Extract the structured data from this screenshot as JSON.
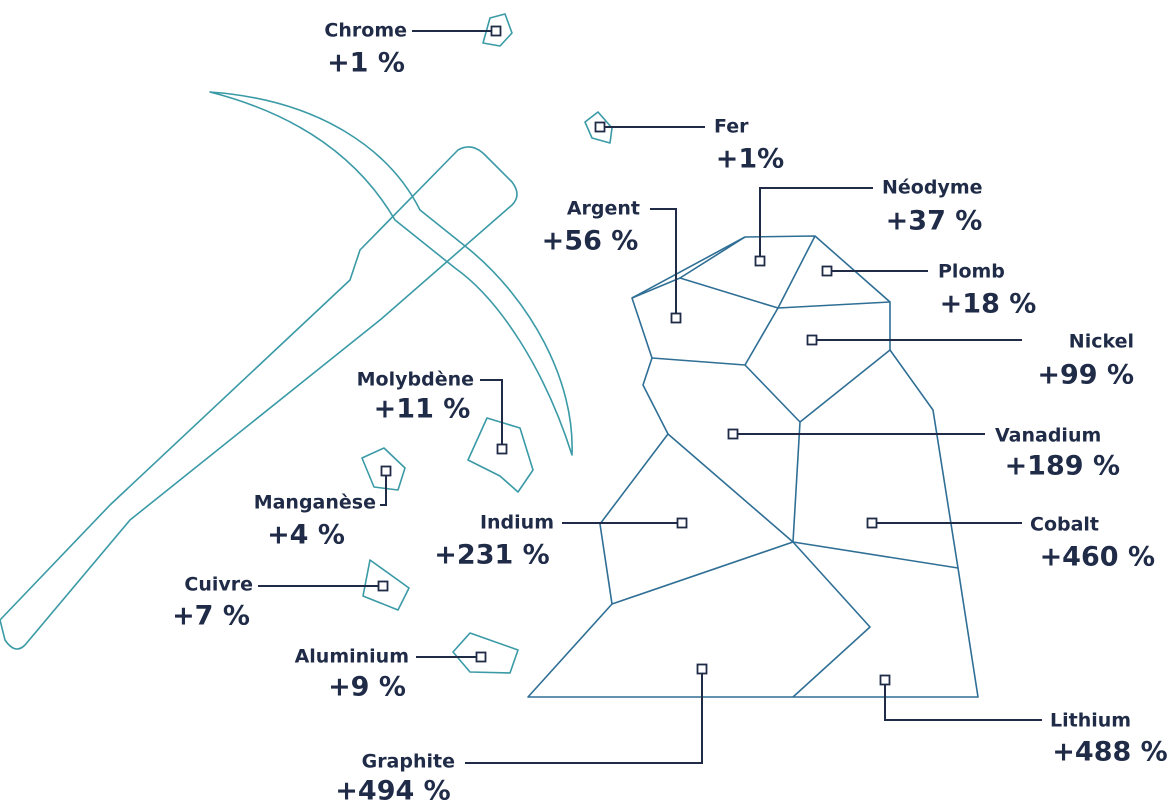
{
  "items": [
    {
      "name": "Chrome",
      "value": "+1 %"
    },
    {
      "name": "Fer",
      "value": "+1%"
    },
    {
      "name": "Néodyme",
      "value": "+37 %"
    },
    {
      "name": "Argent",
      "value": "+56 %"
    },
    {
      "name": "Plomb",
      "value": "+18 %"
    },
    {
      "name": "Nickel",
      "value": "+99 %"
    },
    {
      "name": "Molybdène",
      "value": "+11 %"
    },
    {
      "name": "Vanadium",
      "value": "+189 %"
    },
    {
      "name": "Manganèse",
      "value": "+4 %"
    },
    {
      "name": "Indium",
      "value": "+231 %"
    },
    {
      "name": "Cobalt",
      "value": "+460 %"
    },
    {
      "name": "Cuivre",
      "value": "+7 %"
    },
    {
      "name": "Aluminium",
      "value": "+9 %"
    },
    {
      "name": "Graphite",
      "value": "+494 %"
    },
    {
      "name": "Lithium",
      "value": "+488 %"
    }
  ]
}
